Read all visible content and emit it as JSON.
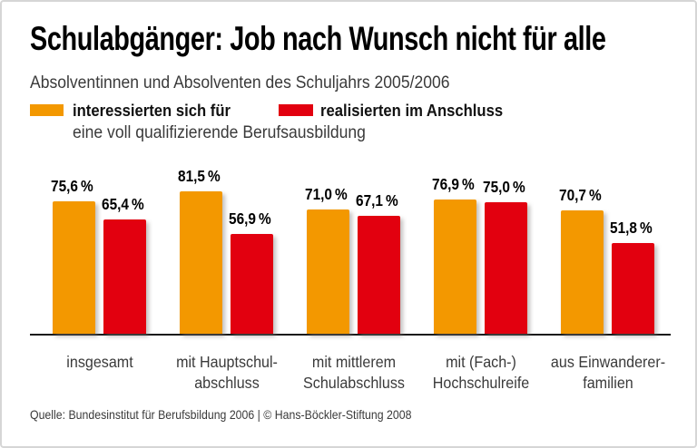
{
  "header": {
    "title": "Schulabgänger: Job nach Wunsch nicht für alle",
    "subtitle": "Absolventinnen und Absolventen des Schuljahrs 2005/2006"
  },
  "legend": {
    "shared_suffix": "eine voll qualifizierende Berufsausbildung"
  },
  "footer": {
    "source": "Quelle: Bundesinstitut für Berufsbildung 2006 | © Hans-Böckler-Stiftung 2008"
  },
  "colors": {
    "orange": "#F39800",
    "red": "#E2000F",
    "axis": "#1A1A1A",
    "border": "#D6D6D6",
    "text_primary": "#000000",
    "text_secondary": "#3A3A3A"
  },
  "chart_data": {
    "type": "bar",
    "title": "Schulabgänger: Job nach Wunsch nicht für alle",
    "subtitle": "Absolventinnen und Absolventen des Schuljahrs 2005/2006",
    "unit": "%",
    "ylim": [
      0,
      100
    ],
    "grid": false,
    "legend_position": "top",
    "value_labels_shown": true,
    "legend_note": "eine voll qualifizierende Berufsausbildung",
    "categories": [
      "insgesamt",
      "mit Hauptschul-\nabschluss",
      "mit mittlerem\nSchulabschluss",
      "mit (Fach-)\nHochschulreife",
      "aus Einwanderer-\nfamilien"
    ],
    "series": [
      {
        "name": "interessierten sich für",
        "color": "#F39800",
        "values": [
          75.6,
          81.5,
          71.0,
          76.9,
          70.7
        ],
        "value_labels": [
          "75,6 %",
          "81,5 %",
          "71,0 %",
          "76,9 %",
          "70,7 %"
        ]
      },
      {
        "name": "realisierten im Anschluss",
        "color": "#E2000F",
        "values": [
          65.4,
          56.9,
          67.1,
          75.0,
          51.8
        ],
        "value_labels": [
          "65,4 %",
          "56,9 %",
          "67,1 %",
          "75,0 %",
          "51,8 %"
        ]
      }
    ]
  }
}
